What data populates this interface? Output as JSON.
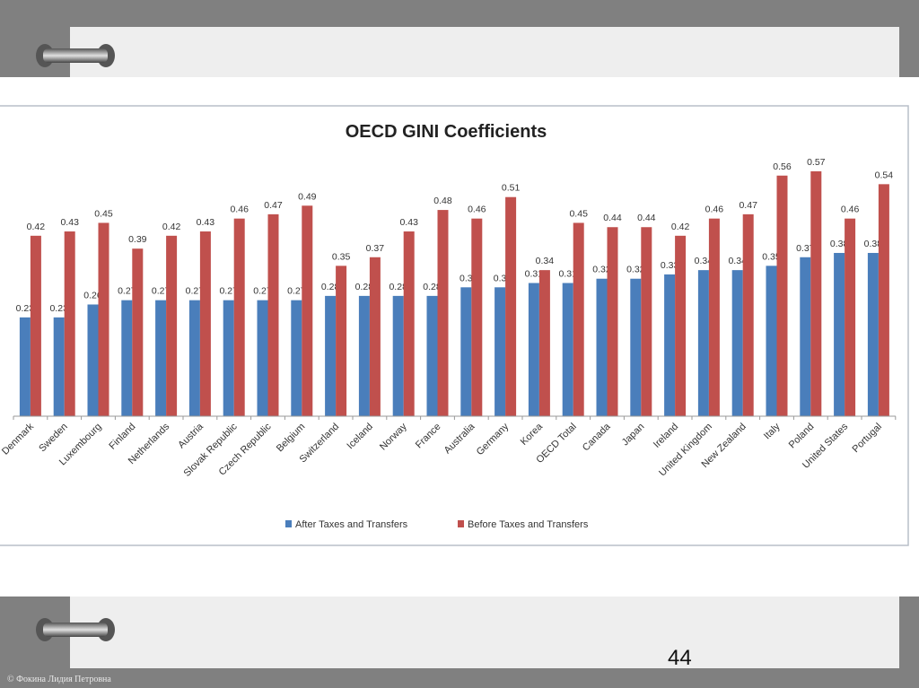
{
  "slide": {
    "page_number": "44",
    "copyright": "© Фокина Лидия Петровна"
  },
  "colors": {
    "after": "#4a7ebb",
    "before": "#c0504d",
    "frame": "#808080",
    "panel": "#eeeeee"
  },
  "chart_data": {
    "type": "bar",
    "title": "OECD GINI Coefficients",
    "xlabel": "",
    "ylabel": "",
    "ylim": [
      0,
      0.6
    ],
    "grid": false,
    "legend_position": "bottom",
    "categories": [
      "Denmark",
      "Sweden",
      "Luxembourg",
      "Finland",
      "Netherlands",
      "Austria",
      "Slovak Republic",
      "Czech Republic",
      "Belgium",
      "Switzerland",
      "Iceland",
      "Norway",
      "France",
      "Australia",
      "Germany",
      "Korea",
      "OECD Total",
      "Canada",
      "Japan",
      "Ireland",
      "United Kingdom",
      "New Zealand",
      "Italy",
      "Poland",
      "United States",
      "Portugal"
    ],
    "series": [
      {
        "name": "After Taxes and Transfers",
        "values": [
          0.23,
          0.23,
          0.26,
          0.27,
          0.27,
          0.27,
          0.27,
          0.27,
          0.27,
          0.28,
          0.28,
          0.28,
          0.28,
          0.3,
          0.3,
          0.31,
          0.31,
          0.32,
          0.32,
          0.33,
          0.34,
          0.34,
          0.35,
          0.37,
          0.38,
          0.38
        ]
      },
      {
        "name": "Before Taxes and Transfers",
        "values": [
          0.42,
          0.43,
          0.45,
          0.39,
          0.42,
          0.43,
          0.46,
          0.47,
          0.49,
          0.35,
          0.37,
          0.43,
          0.48,
          0.46,
          0.51,
          0.34,
          0.45,
          0.44,
          0.44,
          0.42,
          0.46,
          0.47,
          0.56,
          0.57,
          0.46,
          0.54
        ]
      }
    ]
  }
}
